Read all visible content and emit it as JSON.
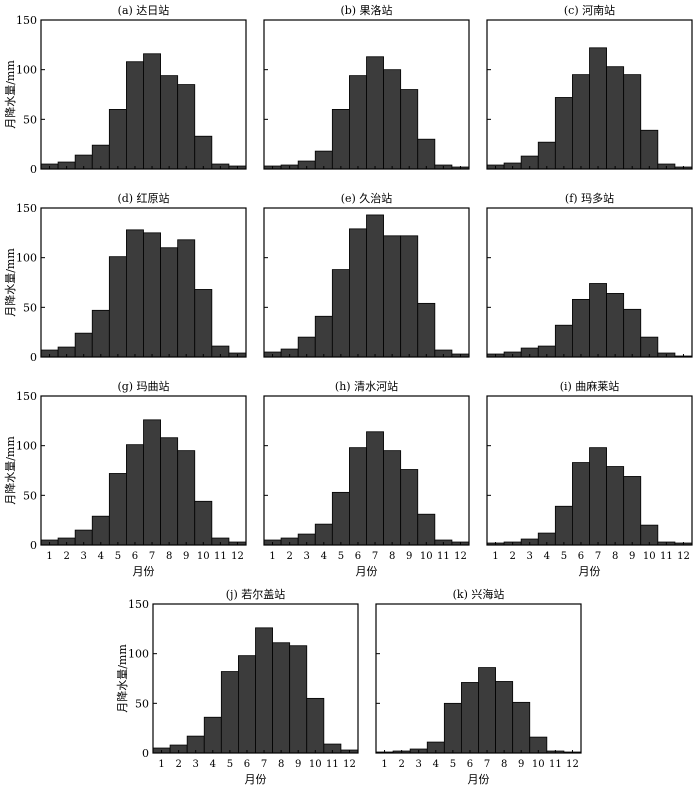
{
  "figure": {
    "ylabel": "月降水量/mm",
    "xlabel": "月份",
    "months": [
      "1",
      "2",
      "3",
      "4",
      "5",
      "6",
      "7",
      "8",
      "9",
      "10",
      "11",
      "12"
    ],
    "yticks": [
      0,
      50,
      100,
      150
    ],
    "bar_color": "#3c3c3c"
  },
  "chart_data": [
    {
      "type": "bar",
      "title": "(a) 达日站",
      "categories": [
        "1",
        "2",
        "3",
        "4",
        "5",
        "6",
        "7",
        "8",
        "9",
        "10",
        "11",
        "12"
      ],
      "values": [
        5,
        7,
        14,
        24,
        60,
        108,
        116,
        94,
        85,
        33,
        5,
        3
      ],
      "ylim": [
        0,
        150
      ],
      "xlabel": "",
      "ylabel": "月降水量/mm"
    },
    {
      "type": "bar",
      "title": "(b) 果洛站",
      "categories": [
        "1",
        "2",
        "3",
        "4",
        "5",
        "6",
        "7",
        "8",
        "9",
        "10",
        "11",
        "12"
      ],
      "values": [
        3,
        4,
        8,
        18,
        60,
        94,
        113,
        100,
        80,
        30,
        4,
        2
      ],
      "ylim": [
        0,
        150
      ],
      "xlabel": "",
      "ylabel": ""
    },
    {
      "type": "bar",
      "title": "(c) 河南站",
      "categories": [
        "1",
        "2",
        "3",
        "4",
        "5",
        "6",
        "7",
        "8",
        "9",
        "10",
        "11",
        "12"
      ],
      "values": [
        4,
        6,
        13,
        27,
        72,
        95,
        122,
        103,
        95,
        39,
        5,
        2
      ],
      "ylim": [
        0,
        150
      ],
      "xlabel": "",
      "ylabel": ""
    },
    {
      "type": "bar",
      "title": "(d) 红原站",
      "categories": [
        "1",
        "2",
        "3",
        "4",
        "5",
        "6",
        "7",
        "8",
        "9",
        "10",
        "11",
        "12"
      ],
      "values": [
        7,
        10,
        24,
        47,
        101,
        128,
        125,
        110,
        118,
        68,
        11,
        4
      ],
      "ylim": [
        0,
        150
      ],
      "xlabel": "",
      "ylabel": "月降水量/mm"
    },
    {
      "type": "bar",
      "title": "(e) 久治站",
      "categories": [
        "1",
        "2",
        "3",
        "4",
        "5",
        "6",
        "7",
        "8",
        "9",
        "10",
        "11",
        "12"
      ],
      "values": [
        5,
        8,
        20,
        41,
        88,
        129,
        143,
        122,
        122,
        54,
        7,
        3
      ],
      "ylim": [
        0,
        150
      ],
      "xlabel": "",
      "ylabel": ""
    },
    {
      "type": "bar",
      "title": "(f) 玛多站",
      "categories": [
        "1",
        "2",
        "3",
        "4",
        "5",
        "6",
        "7",
        "8",
        "9",
        "10",
        "11",
        "12"
      ],
      "values": [
        3,
        5,
        9,
        11,
        32,
        58,
        74,
        64,
        48,
        20,
        4,
        1
      ],
      "ylim": [
        0,
        150
      ],
      "xlabel": "",
      "ylabel": ""
    },
    {
      "type": "bar",
      "title": "(g) 玛曲站",
      "categories": [
        "1",
        "2",
        "3",
        "4",
        "5",
        "6",
        "7",
        "8",
        "9",
        "10",
        "11",
        "12"
      ],
      "values": [
        5,
        7,
        15,
        29,
        72,
        101,
        126,
        108,
        95,
        44,
        7,
        3
      ],
      "ylim": [
        0,
        150
      ],
      "xlabel": "月份",
      "ylabel": "月降水量/mm"
    },
    {
      "type": "bar",
      "title": "(h) 清水河站",
      "categories": [
        "1",
        "2",
        "3",
        "4",
        "5",
        "6",
        "7",
        "8",
        "9",
        "10",
        "11",
        "12"
      ],
      "values": [
        5,
        7,
        11,
        21,
        53,
        98,
        114,
        95,
        76,
        31,
        5,
        3
      ],
      "ylim": [
        0,
        150
      ],
      "xlabel": "月份",
      "ylabel": ""
    },
    {
      "type": "bar",
      "title": "(i) 曲麻莱站",
      "categories": [
        "1",
        "2",
        "3",
        "4",
        "5",
        "6",
        "7",
        "8",
        "9",
        "10",
        "11",
        "12"
      ],
      "values": [
        2,
        3,
        6,
        12,
        39,
        83,
        98,
        79,
        69,
        20,
        3,
        2
      ],
      "ylim": [
        0,
        150
      ],
      "xlabel": "月份",
      "ylabel": ""
    },
    {
      "type": "bar",
      "title": "(j) 若尔盖站",
      "categories": [
        "1",
        "2",
        "3",
        "4",
        "5",
        "6",
        "7",
        "8",
        "9",
        "10",
        "11",
        "12"
      ],
      "values": [
        5,
        8,
        17,
        36,
        82,
        98,
        126,
        111,
        108,
        55,
        9,
        3
      ],
      "ylim": [
        0,
        150
      ],
      "xlabel": "月份",
      "ylabel": "月降水量/mm"
    },
    {
      "type": "bar",
      "title": "(k) 兴海站",
      "categories": [
        "1",
        "2",
        "3",
        "4",
        "5",
        "6",
        "7",
        "8",
        "9",
        "10",
        "11",
        "12"
      ],
      "values": [
        1,
        2,
        4,
        11,
        50,
        71,
        86,
        72,
        51,
        16,
        2,
        1
      ],
      "ylim": [
        0,
        150
      ],
      "xlabel": "月份",
      "ylabel": ""
    }
  ]
}
